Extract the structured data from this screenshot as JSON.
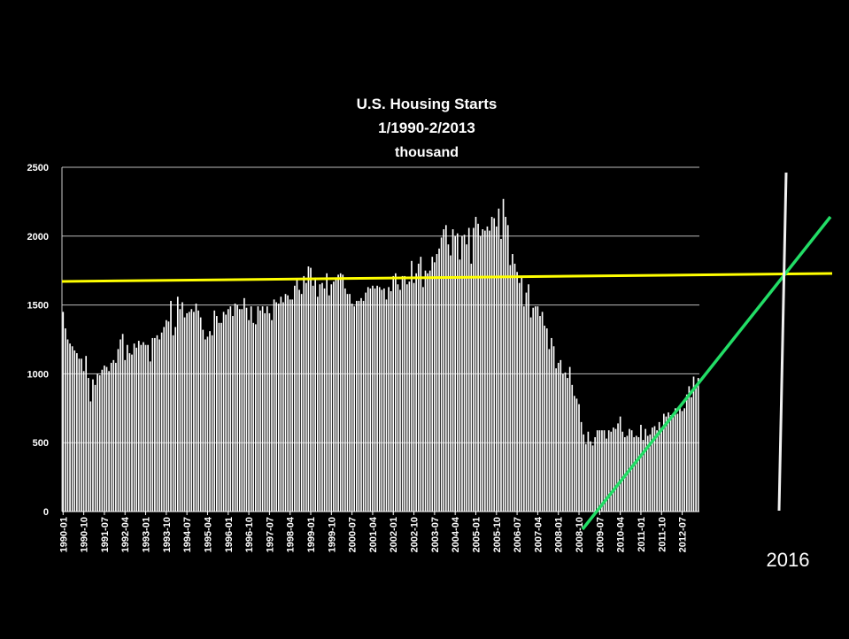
{
  "chart_data": {
    "type": "bar",
    "title": "U.S. Housing  Starts",
    "subtitle": "1/1990-2/2013",
    "y_label": "thousand",
    "annotation": "2016",
    "color": "#ffffff",
    "grid": true,
    "ylim": [
      0,
      2500
    ],
    "yticks": [
      0,
      500,
      1000,
      1500,
      2000,
      2500
    ],
    "categories": [
      "1990-01",
      null,
      null,
      null,
      null,
      null,
      null,
      null,
      null,
      "1990-10",
      null,
      null,
      null,
      null,
      null,
      null,
      null,
      null,
      "1991-07",
      null,
      null,
      null,
      null,
      null,
      null,
      null,
      null,
      "1992-04",
      null,
      null,
      null,
      null,
      null,
      null,
      null,
      null,
      "1993-01",
      null,
      null,
      null,
      null,
      null,
      null,
      null,
      null,
      "1993-10",
      null,
      null,
      null,
      null,
      null,
      null,
      null,
      null,
      "1994-07",
      null,
      null,
      null,
      null,
      null,
      null,
      null,
      null,
      "1995-04",
      null,
      null,
      null,
      null,
      null,
      null,
      null,
      null,
      "1996-01",
      null,
      null,
      null,
      null,
      null,
      null,
      null,
      null,
      "1996-10",
      null,
      null,
      null,
      null,
      null,
      null,
      null,
      null,
      "1997-07",
      null,
      null,
      null,
      null,
      null,
      null,
      null,
      null,
      "1998-04",
      null,
      null,
      null,
      null,
      null,
      null,
      null,
      null,
      "1999-01",
      null,
      null,
      null,
      null,
      null,
      null,
      null,
      null,
      "1999-10",
      null,
      null,
      null,
      null,
      null,
      null,
      null,
      null,
      "2000-07",
      null,
      null,
      null,
      null,
      null,
      null,
      null,
      null,
      "2001-04",
      null,
      null,
      null,
      null,
      null,
      null,
      null,
      null,
      "2002-01",
      null,
      null,
      null,
      null,
      null,
      null,
      null,
      null,
      "2002-10",
      null,
      null,
      null,
      null,
      null,
      null,
      null,
      null,
      "2003-07",
      null,
      null,
      null,
      null,
      null,
      null,
      null,
      null,
      "2004-04",
      null,
      null,
      null,
      null,
      null,
      null,
      null,
      null,
      "2005-01",
      null,
      null,
      null,
      null,
      null,
      null,
      null,
      null,
      "2005-10",
      null,
      null,
      null,
      null,
      null,
      null,
      null,
      null,
      "2006-07",
      null,
      null,
      null,
      null,
      null,
      null,
      null,
      null,
      "2007-04",
      null,
      null,
      null,
      null,
      null,
      null,
      null,
      null,
      "2008-01",
      null,
      null,
      null,
      null,
      null,
      null,
      null,
      null,
      "2008-10",
      null,
      null,
      null,
      null,
      null,
      null,
      null,
      null,
      "2009-07",
      null,
      null,
      null,
      null,
      null,
      null,
      null,
      null,
      "2010-04",
      null,
      null,
      null,
      null,
      null,
      null,
      null,
      null,
      "2011-01",
      null,
      null,
      null,
      null,
      null,
      null,
      null,
      null,
      "2011-10",
      null,
      null,
      null,
      null,
      null,
      null,
      null,
      null,
      "2012-07",
      null,
      null,
      null,
      null,
      null,
      null,
      null
    ],
    "values": [
      1450,
      1330,
      1250,
      1220,
      1200,
      1170,
      1150,
      1110,
      1110,
      1020,
      1130,
      970,
      800,
      960,
      920,
      1000,
      990,
      1030,
      1060,
      1050,
      1020,
      1080,
      1100,
      1080,
      1180,
      1250,
      1290,
      1100,
      1210,
      1150,
      1140,
      1220,
      1190,
      1240,
      1210,
      1230,
      1210,
      1210,
      1090,
      1260,
      1260,
      1280,
      1250,
      1300,
      1340,
      1390,
      1380,
      1530,
      1280,
      1340,
      1560,
      1470,
      1520,
      1410,
      1440,
      1450,
      1470,
      1450,
      1510,
      1460,
      1410,
      1320,
      1250,
      1270,
      1310,
      1280,
      1460,
      1420,
      1370,
      1370,
      1450,
      1430,
      1470,
      1490,
      1420,
      1510,
      1500,
      1470,
      1470,
      1550,
      1480,
      1390,
      1490,
      1370,
      1360,
      1490,
      1460,
      1490,
      1440,
      1490,
      1440,
      1390,
      1540,
      1520,
      1510,
      1560,
      1520,
      1580,
      1570,
      1540,
      1540,
      1640,
      1690,
      1610,
      1580,
      1710,
      1660,
      1780,
      1770,
      1640,
      1700,
      1560,
      1650,
      1660,
      1620,
      1730,
      1570,
      1650,
      1670,
      1700,
      1720,
      1730,
      1720,
      1620,
      1580,
      1580,
      1510,
      1490,
      1530,
      1530,
      1550,
      1530,
      1590,
      1630,
      1620,
      1640,
      1620,
      1640,
      1630,
      1610,
      1620,
      1540,
      1630,
      1600,
      1710,
      1730,
      1650,
      1610,
      1710,
      1710,
      1650,
      1670,
      1820,
      1660,
      1730,
      1800,
      1850,
      1630,
      1750,
      1730,
      1750,
      1850,
      1810,
      1870,
      1910,
      1990,
      2050,
      2080,
      1940,
      1860,
      2050,
      2000,
      2020,
      1830,
      2000,
      2010,
      1940,
      2060,
      1800,
      2060,
      2140,
      2090,
      2000,
      2050,
      2040,
      2070,
      2040,
      2140,
      2130,
      2070,
      2200,
      1980,
      2270,
      2140,
      2080,
      1790,
      1870,
      1800,
      1740,
      1660,
      1710,
      1490,
      1590,
      1650,
      1410,
      1480,
      1490,
      1490,
      1420,
      1450,
      1350,
      1330,
      1180,
      1260,
      1200,
      1040,
      1080,
      1100,
      1000,
      1010,
      970,
      1050,
      920,
      840,
      820,
      780,
      650,
      560,
      490,
      580,
      510,
      480,
      540,
      590,
      590,
      590,
      590,
      530,
      590,
      580,
      610,
      600,
      640,
      690,
      580,
      540,
      550,
      600,
      590,
      540,
      550,
      540,
      630,
      520,
      600,
      550,
      560,
      610,
      620,
      590,
      650,
      610,
      710,
      690,
      720,
      700,
      700,
      750,
      710,
      760,
      730,
      750,
      850,
      910,
      830,
      980,
      900,
      970
    ]
  }
}
